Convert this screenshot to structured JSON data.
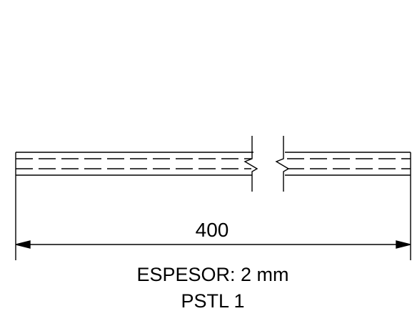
{
  "drawing": {
    "dimension_value": "400",
    "thickness_label": "ESPESOR: 2 mm",
    "part_label": "PSTL 1",
    "line_color": "#000000",
    "background_color": "#ffffff"
  }
}
